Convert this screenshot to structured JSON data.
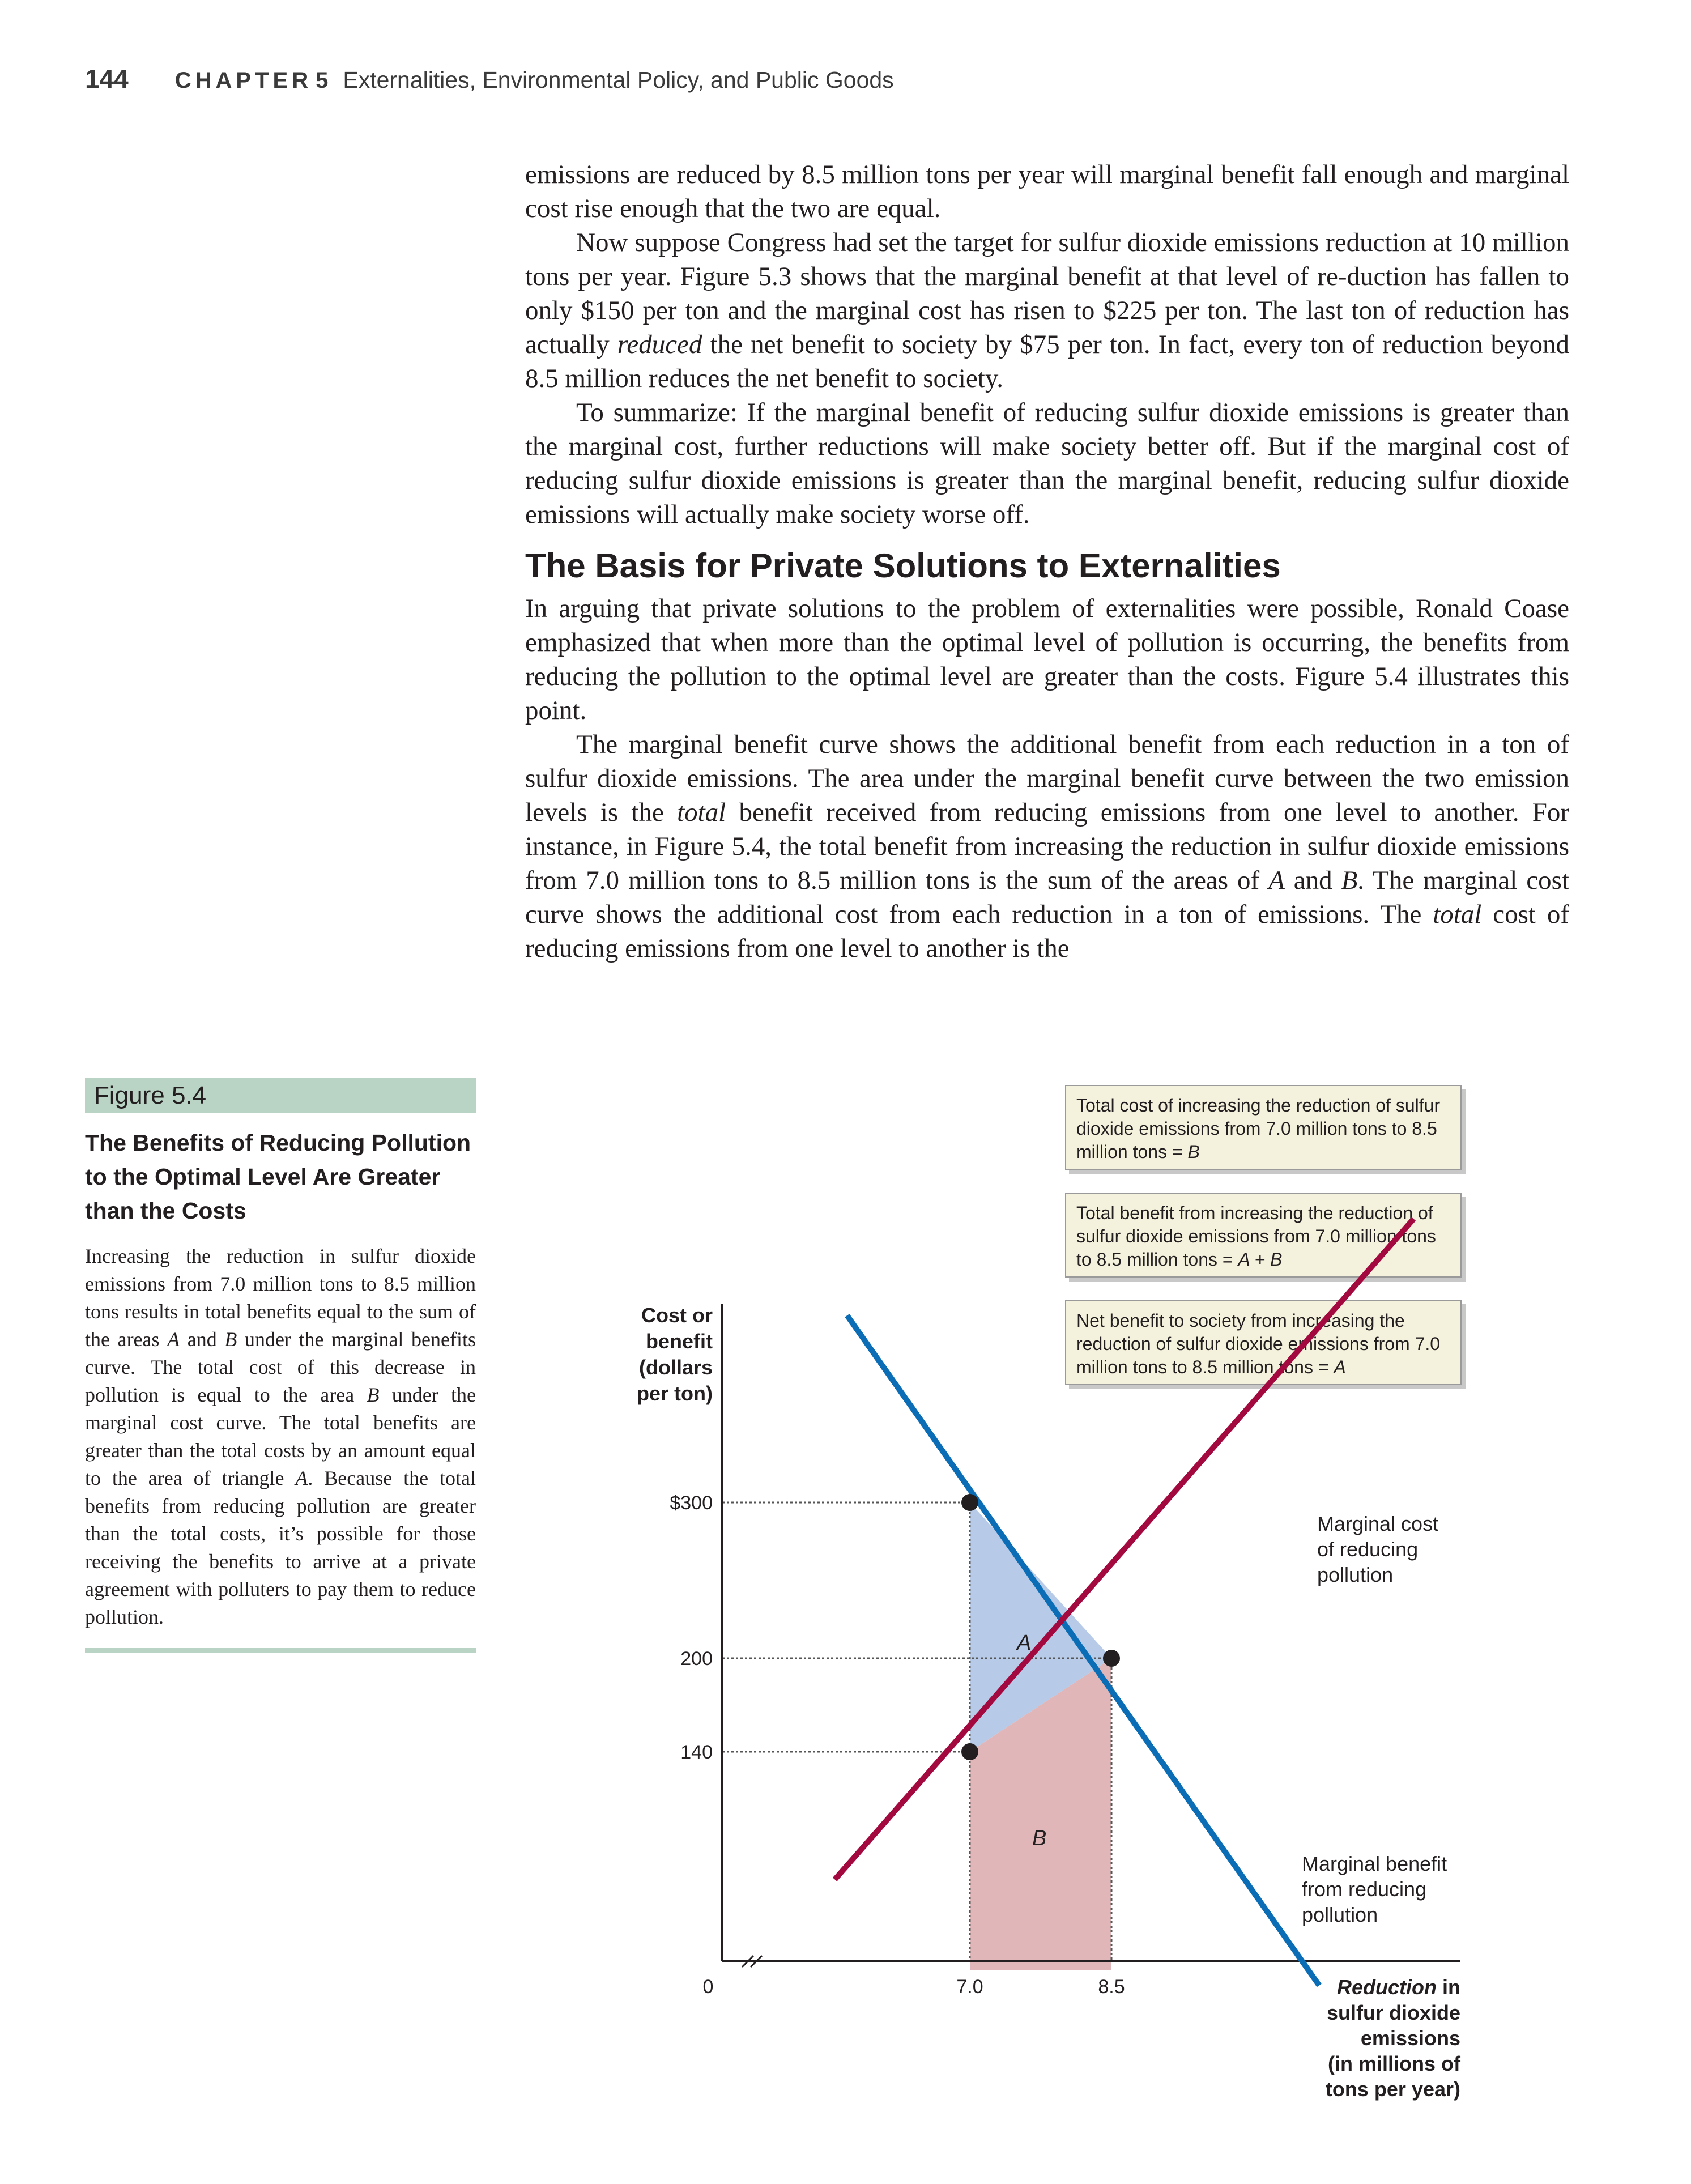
{
  "header": {
    "page_number": "144",
    "chapter_label": "CHAPTER",
    "chapter_number": "5",
    "chapter_title": "Externalities, Environmental Policy, and Public Goods"
  },
  "body": {
    "p1": "emissions are reduced by 8.5 million tons per year will marginal benefit fall enough and marginal cost rise enough that the two are equal.",
    "p2": "Now suppose Congress had set the target for sulfur dioxide emissions reduction at 10 million tons per year. Figure 5.3 shows that the marginal benefit at that level of re-duction has fallen to only $150 per ton and the marginal cost has risen to $225 per ton. The last ton of reduction has actually reduced the net benefit to society by $75 per ton. In fact, every ton of reduction beyond 8.5 million reduces the net benefit to society.",
    "p3": "To summarize: If the marginal benefit of reducing sulfur dioxide emissions is greater than the marginal cost, further reductions will make society better off. But if the marginal cost of reducing sulfur dioxide emissions is greater than the marginal benefit, reducing sulfur dioxide emissions will actually make society worse off.",
    "section_heading": "The Basis for Private Solutions to Externalities",
    "p4": "In arguing that private solutions to the problem of externalities were possible, Ronald Coase emphasized that when more than the optimal level of pollution is occurring, the benefits from reducing the pollution to the optimal level are greater than the costs. Figure 5.4 illustrates this point.",
    "p5": "The marginal benefit curve shows the additional benefit from each reduction in a ton of sulfur dioxide emissions. The area under the marginal benefit curve between the two emission levels is the total benefit received from reducing emissions from one level to another. For instance, in Figure 5.4, the total benefit from increasing the reduction in sulfur dioxide emissions from 7.0 million tons to 8.5 million tons is the sum of the areas of A and B. The marginal cost curve shows the additional cost from each reduction in a ton of emissions. The total cost of reducing emissions from one level to another is the"
  },
  "figure": {
    "label": "Figure 5.4",
    "title": "The Benefits of Reducing Pollution to the Optimal Level Are Greater than the Costs",
    "caption": "Increasing the reduction in sulfur dioxide emissions from 7.0 million tons to 8.5 million tons results in total benefits equal to the sum of the areas A and B under the marginal benefits curve. The total cost of this decrease in pollution is equal to the area B under the marginal cost curve. The total benefits are greater than the total costs by an amount equal to the area of triangle A. Because the total benefits from reducing pollution are greater than the total costs, it’s possible for those receiving the benefits to arrive at a private agreement with polluters to pay them to reduce pollution."
  },
  "callouts": {
    "total_cost": "Total cost of increasing the reduction of sulfur dioxide emissions from 7.0 million tons to 8.5 million tons = B",
    "total_benefit": "Total benefit from increasing the reduction of sulfur dioxide emissions from 7.0 million tons to 8.5 million tons = A + B",
    "net_benefit": "Net benefit to society from increasing the reduction of sulfur dioxide emissions from 7.0 million tons to 8.5 million tons = A"
  },
  "chart_data": {
    "type": "line",
    "ylabel_lines": [
      "Cost or",
      "benefit",
      "(dollars",
      "per ton)"
    ],
    "xlabel_lines": [
      "Reduction in",
      "sulfur dioxide",
      "emissions",
      "(in millions of",
      "tons per year)"
    ],
    "origin_label": "0",
    "x_ticks": [
      {
        "value": 7.0,
        "label": "7.0"
      },
      {
        "value": 8.5,
        "label": "8.5"
      }
    ],
    "y_ticks": [
      {
        "value": 300,
        "label": "$300"
      },
      {
        "value": 200,
        "label": "200"
      },
      {
        "value": 140,
        "label": "140"
      }
    ],
    "axis_break": true,
    "series": [
      {
        "name": "Marginal benefit from reducing pollution",
        "label_lines": [
          "Marginal benefit",
          "from reducing",
          "pollution"
        ],
        "color": "#0a6db5",
        "points": [
          [
            5.7,
            420
          ],
          [
            10.7,
            -10
          ]
        ]
      },
      {
        "name": "Marginal cost of reducing pollution",
        "label_lines": [
          "Marginal cost",
          "of reducing",
          "pollution"
        ],
        "color": "#a3093f",
        "points": [
          [
            5.57,
            58
          ],
          [
            11.7,
            482
          ]
        ]
      }
    ],
    "key_points": [
      {
        "x": 7.0,
        "y": 300
      },
      {
        "x": 8.5,
        "y": 200
      },
      {
        "x": 7.0,
        "y": 140
      }
    ],
    "areas": [
      {
        "label": "A",
        "color": "#b7cbe8",
        "polygon": [
          [
            7.0,
            300
          ],
          [
            8.5,
            200
          ],
          [
            7.0,
            140
          ]
        ]
      },
      {
        "label": "B",
        "color": "#e0b6b8",
        "polygon": [
          [
            7.0,
            0
          ],
          [
            7.0,
            140
          ],
          [
            8.5,
            200
          ],
          [
            8.5,
            0
          ]
        ]
      }
    ]
  }
}
